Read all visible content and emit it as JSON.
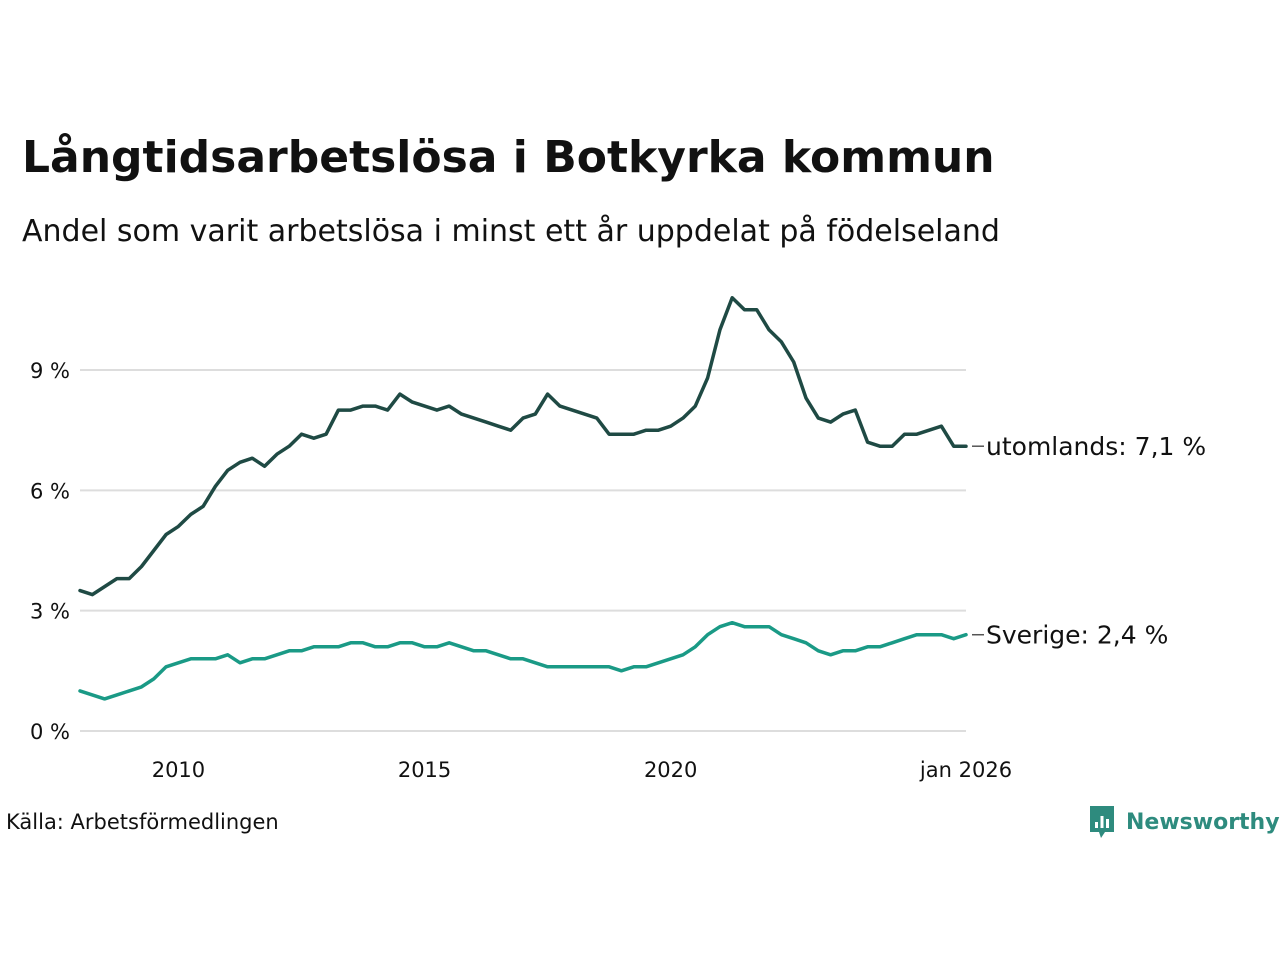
{
  "header": {
    "title": "Långtidsarbetslösa i Botkyrka kommun",
    "subtitle": "Andel som varit arbetslösa i minst ett år uppdelat på födelseland"
  },
  "footer": {
    "source": "Källa: Arbetsförmedlingen",
    "brand": "Newsworthy"
  },
  "colors": {
    "utomlands": "#1f4a44",
    "sverige": "#1a9a86",
    "grid": "#dddddd",
    "brand": "#2e8b7e"
  },
  "icons": {
    "brand_logo": "bar-chart-speech-bubble-icon"
  },
  "chart_data": {
    "type": "line",
    "title": "Långtidsarbetslösa i Botkyrka kommun",
    "subtitle": "Andel som varit arbetslösa i minst ett år uppdelat på födelseland",
    "xlabel": "",
    "ylabel": "",
    "x_range": [
      2008.0,
      2026.0
    ],
    "ylim": [
      0,
      11
    ],
    "y_ticks": [
      0,
      3,
      6,
      9
    ],
    "y_tick_labels": [
      "0 %",
      "3 %",
      "6 %",
      "9 %"
    ],
    "x_ticks": [
      2010,
      2015,
      2020,
      2026
    ],
    "x_tick_labels": [
      "2010",
      "2015",
      "2020",
      "jan 2026"
    ],
    "grid": true,
    "legend": "direct labels at line ends (right)",
    "series": [
      {
        "name": "utomlands",
        "end_label": "utomlands: 7,1 %",
        "x": [
          2008.0,
          2008.25,
          2008.5,
          2008.75,
          2009.0,
          2009.25,
          2009.5,
          2009.75,
          2010.0,
          2010.25,
          2010.5,
          2010.75,
          2011.0,
          2011.25,
          2011.5,
          2011.75,
          2012.0,
          2012.25,
          2012.5,
          2012.75,
          2013.0,
          2013.25,
          2013.5,
          2013.75,
          2014.0,
          2014.25,
          2014.5,
          2014.75,
          2015.0,
          2015.25,
          2015.5,
          2015.75,
          2016.0,
          2016.25,
          2016.5,
          2016.75,
          2017.0,
          2017.25,
          2017.5,
          2017.75,
          2018.0,
          2018.25,
          2018.5,
          2018.75,
          2019.0,
          2019.25,
          2019.5,
          2019.75,
          2020.0,
          2020.25,
          2020.5,
          2020.75,
          2021.0,
          2021.25,
          2021.5,
          2021.75,
          2022.0,
          2022.25,
          2022.5,
          2022.75,
          2023.0,
          2023.25,
          2023.5,
          2023.75,
          2024.0,
          2024.25,
          2024.5,
          2024.75,
          2025.0,
          2025.25,
          2025.5,
          2025.75,
          2026.0
        ],
        "values": [
          3.5,
          3.4,
          3.6,
          3.8,
          3.8,
          4.1,
          4.5,
          4.9,
          5.1,
          5.4,
          5.6,
          6.1,
          6.5,
          6.7,
          6.8,
          6.6,
          6.9,
          7.1,
          7.4,
          7.3,
          7.4,
          8.0,
          8.0,
          8.1,
          8.1,
          8.0,
          8.4,
          8.2,
          8.1,
          8.0,
          8.1,
          7.9,
          7.8,
          7.7,
          7.6,
          7.5,
          7.8,
          7.9,
          8.4,
          8.1,
          8.0,
          7.9,
          7.8,
          7.4,
          7.4,
          7.4,
          7.5,
          7.5,
          7.6,
          7.8,
          8.1,
          8.8,
          10.0,
          10.8,
          10.5,
          10.5,
          10.0,
          9.7,
          9.2,
          8.3,
          7.8,
          7.7,
          7.9,
          8.0,
          7.2,
          7.1,
          7.1,
          7.4,
          7.4,
          7.5,
          7.6,
          7.1,
          7.1
        ]
      },
      {
        "name": "Sverige",
        "end_label": "Sverige: 2,4 %",
        "x": [
          2008.0,
          2008.25,
          2008.5,
          2008.75,
          2009.0,
          2009.25,
          2009.5,
          2009.75,
          2010.0,
          2010.25,
          2010.5,
          2010.75,
          2011.0,
          2011.25,
          2011.5,
          2011.75,
          2012.0,
          2012.25,
          2012.5,
          2012.75,
          2013.0,
          2013.25,
          2013.5,
          2013.75,
          2014.0,
          2014.25,
          2014.5,
          2014.75,
          2015.0,
          2015.25,
          2015.5,
          2015.75,
          2016.0,
          2016.25,
          2016.5,
          2016.75,
          2017.0,
          2017.25,
          2017.5,
          2017.75,
          2018.0,
          2018.25,
          2018.5,
          2018.75,
          2019.0,
          2019.25,
          2019.5,
          2019.75,
          2020.0,
          2020.25,
          2020.5,
          2020.75,
          2021.0,
          2021.25,
          2021.5,
          2021.75,
          2022.0,
          2022.25,
          2022.5,
          2022.75,
          2023.0,
          2023.25,
          2023.5,
          2023.75,
          2024.0,
          2024.25,
          2024.5,
          2024.75,
          2025.0,
          2025.25,
          2025.5,
          2025.75,
          2026.0
        ],
        "values": [
          1.0,
          0.9,
          0.8,
          0.9,
          1.0,
          1.1,
          1.3,
          1.6,
          1.7,
          1.8,
          1.8,
          1.8,
          1.9,
          1.7,
          1.8,
          1.8,
          1.9,
          2.0,
          2.0,
          2.1,
          2.1,
          2.1,
          2.2,
          2.2,
          2.1,
          2.1,
          2.2,
          2.2,
          2.1,
          2.1,
          2.2,
          2.1,
          2.0,
          2.0,
          1.9,
          1.8,
          1.8,
          1.7,
          1.6,
          1.6,
          1.6,
          1.6,
          1.6,
          1.6,
          1.5,
          1.6,
          1.6,
          1.7,
          1.8,
          1.9,
          2.1,
          2.4,
          2.6,
          2.7,
          2.6,
          2.6,
          2.6,
          2.4,
          2.3,
          2.2,
          2.0,
          1.9,
          2.0,
          2.0,
          2.1,
          2.1,
          2.2,
          2.3,
          2.4,
          2.4,
          2.4,
          2.3,
          2.4
        ]
      }
    ]
  }
}
